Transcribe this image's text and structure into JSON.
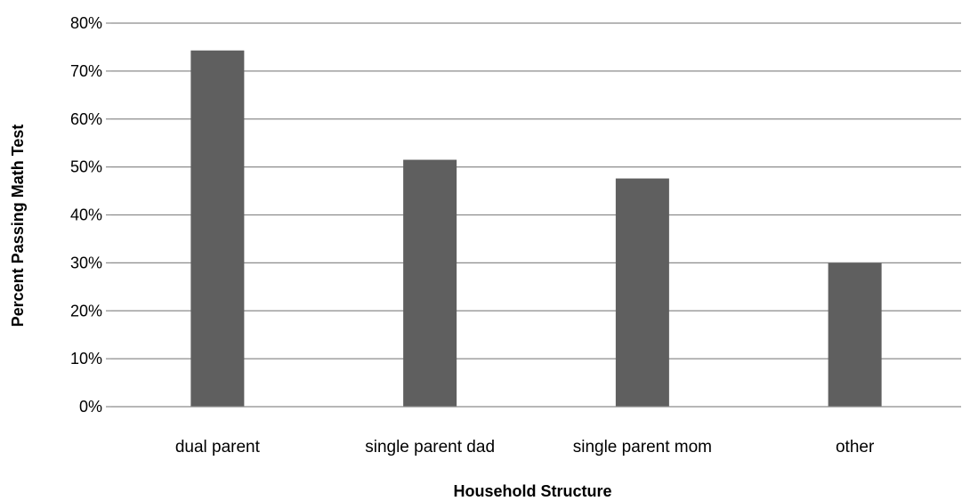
{
  "chart_data": {
    "type": "bar",
    "title": "",
    "xlabel": "Household Structure",
    "ylabel": "Percent  Passing Math Test",
    "categories": [
      "dual parent",
      "single parent dad",
      "single parent mom",
      "other"
    ],
    "values": [
      0.743,
      0.515,
      0.476,
      0.3
    ],
    "ylim": [
      0,
      0.8
    ],
    "yticks": [
      0,
      0.1,
      0.2,
      0.3,
      0.4,
      0.5,
      0.6,
      0.7,
      0.8
    ],
    "ytick_labels": [
      "0%",
      "10%",
      "20%",
      "30%",
      "40%",
      "50%",
      "60%",
      "70%",
      "80%"
    ],
    "grid": true,
    "legend": "none",
    "colors": {
      "bar": "#5f5f5f",
      "grid": "#8c8c8c",
      "axis": "#8c8c8c"
    }
  }
}
